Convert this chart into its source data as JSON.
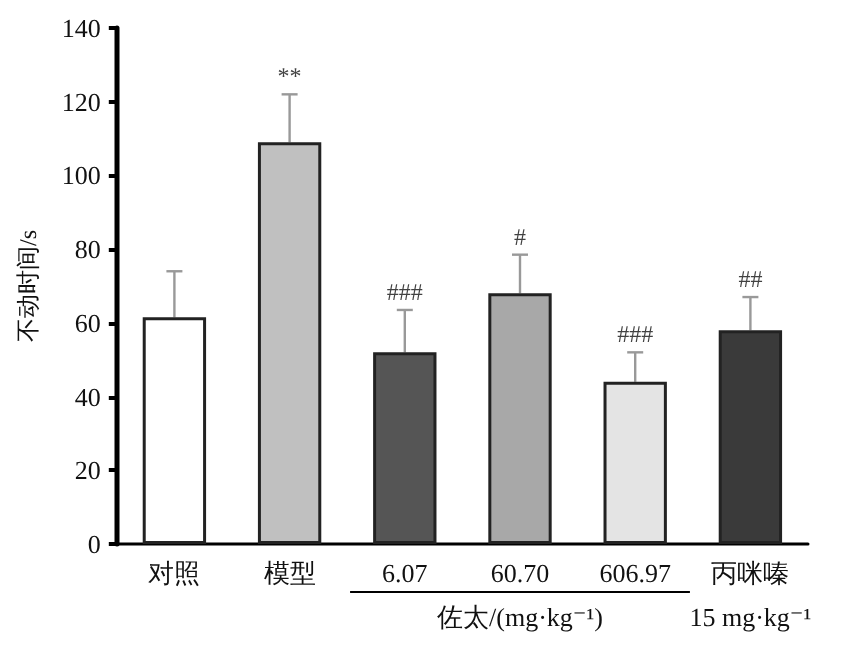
{
  "chart_data": {
    "type": "bar",
    "ylabel": "不动时间/s",
    "xlabel": "佐太/(mg·kg⁻¹)",
    "categories": [
      "对照",
      "模型",
      "6.07",
      "60.70",
      "606.97",
      "丙咪嗪"
    ],
    "values": [
      61.5,
      109,
      52,
      68,
      44,
      58
    ],
    "errors": [
      [
        61.5,
        74
      ],
      [
        109,
        122
      ],
      [
        52,
        63.5
      ],
      [
        68,
        78.5
      ],
      [
        44,
        52
      ],
      [
        58,
        67
      ]
    ],
    "colors": [
      "#ffffff",
      "#c0c0c0",
      "#555555",
      "#a8a8a8",
      "#e4e4e4",
      "#3a3a3a"
    ],
    "ylim": [
      0,
      140
    ],
    "yticks": [
      0,
      20,
      40,
      60,
      80,
      100,
      120,
      140
    ],
    "grid": false,
    "annotations": [
      {
        "text": "**",
        "x": "模型",
        "y": 122
      },
      {
        "text": "###",
        "x": "6.07",
        "y": 63.5
      },
      {
        "text": "#",
        "x": "60.70",
        "y": 78.5
      },
      {
        "text": "###",
        "x": "606.97",
        "y": 52
      },
      {
        "text": "##",
        "x": "丙咪嗪",
        "y": 67
      },
      "15 mg·kg⁻¹"
    ]
  }
}
